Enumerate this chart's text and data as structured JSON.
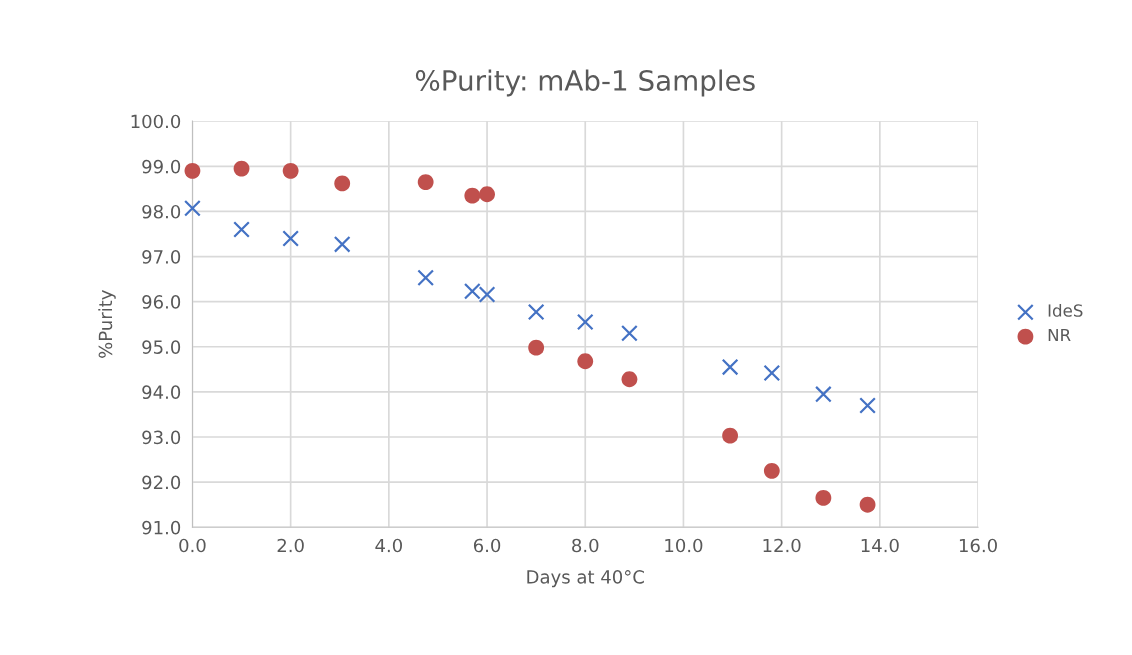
{
  "chart_data": {
    "type": "scatter",
    "title": "%Purity: mAb-1 Samples",
    "xlabel": "Days at 40°C",
    "ylabel": "%Purity",
    "xlim": [
      0,
      16
    ],
    "xticks": [
      {
        "value": 0,
        "label": "0.0"
      },
      {
        "value": 2,
        "label": "2.0"
      },
      {
        "value": 4,
        "label": "4.0"
      },
      {
        "value": 6,
        "label": "6.0"
      },
      {
        "value": 8,
        "label": "8.0"
      },
      {
        "value": 10,
        "label": "10.0"
      },
      {
        "value": 12,
        "label": "12.0"
      },
      {
        "value": 14,
        "label": "14.0"
      },
      {
        "value": 16,
        "label": "16.0"
      }
    ],
    "ylim": [
      91,
      100
    ],
    "yticks": [
      {
        "value": 91,
        "label": "91.0"
      },
      {
        "value": 92,
        "label": "92.0"
      },
      {
        "value": 93,
        "label": "93.0"
      },
      {
        "value": 94,
        "label": "94.0"
      },
      {
        "value": 95,
        "label": "95.0"
      },
      {
        "value": 96,
        "label": "96.0"
      },
      {
        "value": 97,
        "label": "97.0"
      },
      {
        "value": 98,
        "label": "98.0"
      },
      {
        "value": 99,
        "label": "99.0"
      },
      {
        "value": 100,
        "label": "100.0"
      }
    ],
    "grid": true,
    "legend": "right",
    "series": [
      {
        "name": "IdeS",
        "color": "#4472c4",
        "marker": "cross",
        "x": [
          0,
          1,
          2,
          3.05,
          4.75,
          5.7,
          6,
          7,
          8,
          8.9,
          10.95,
          11.8,
          12.85,
          13.75
        ],
        "values": [
          98.07,
          97.6,
          97.4,
          97.27,
          96.53,
          96.23,
          96.16,
          95.77,
          95.55,
          95.3,
          94.55,
          94.42,
          93.95,
          93.7
        ]
      },
      {
        "name": "NR",
        "color": "#c0504d",
        "marker": "circle",
        "x": [
          0,
          1,
          2,
          3.05,
          4.75,
          5.7,
          6,
          7,
          8,
          8.9,
          10.95,
          11.8,
          12.85,
          13.75
        ],
        "values": [
          98.9,
          98.95,
          98.9,
          98.62,
          98.65,
          98.35,
          98.38,
          94.98,
          94.68,
          94.28,
          93.03,
          92.25,
          91.65,
          91.5
        ]
      }
    ]
  }
}
